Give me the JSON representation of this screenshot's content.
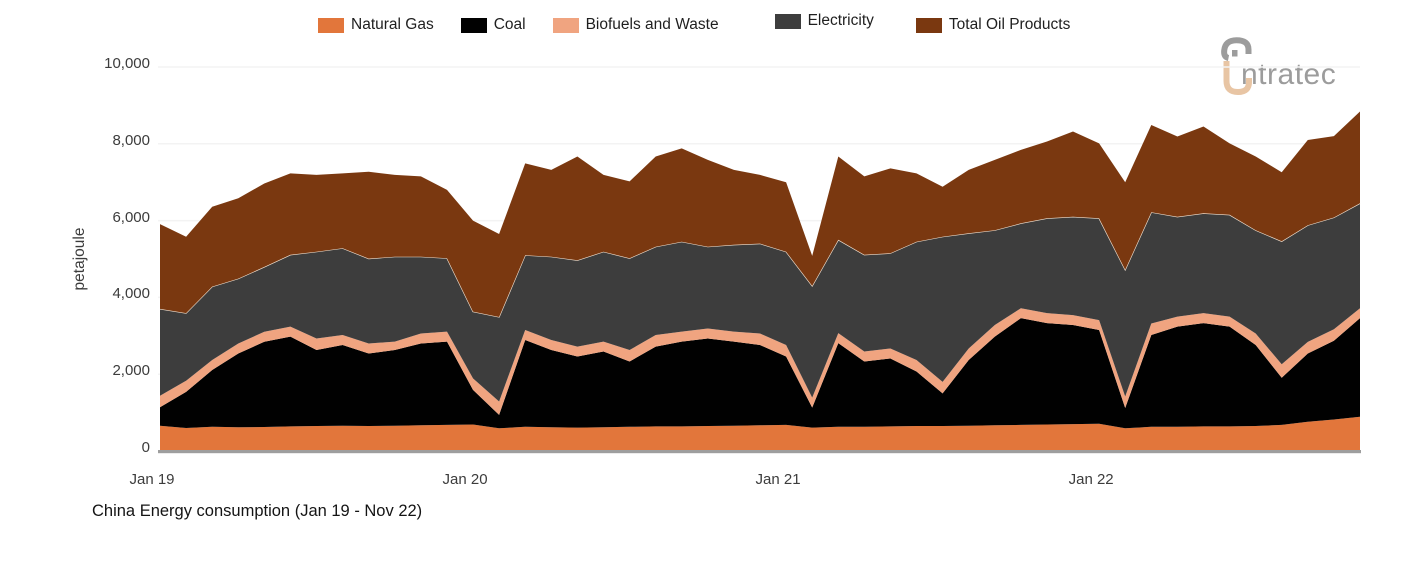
{
  "caption": "China Energy consumption (Jan 19 - Nov 22)",
  "logo": {
    "text": "ntratec",
    "mark_gray": "#9c9c9c",
    "mark_peach": "#e8c5a4"
  },
  "chart_data": {
    "type": "area",
    "subtype": "stacked",
    "unit": "petajoule",
    "title": "China Energy consumption (Jan 19 - Nov 22)",
    "ylabel": "petajoule",
    "ylim": [
      0,
      10000
    ],
    "grid": "horizontal-faint",
    "legend_position": "top-center",
    "x": [
      "Jan 19",
      "Feb 19",
      "Mar 19",
      "Apr 19",
      "May 19",
      "Jun 19",
      "Jul 19",
      "Aug 19",
      "Sep 19",
      "Oct 19",
      "Nov 19",
      "Dec 19",
      "Jan 20",
      "Feb 20",
      "Mar 20",
      "Apr 20",
      "May 20",
      "Jun 20",
      "Jul 20",
      "Aug 20",
      "Sep 20",
      "Oct 20",
      "Nov 20",
      "Dec 20",
      "Jan 21",
      "Feb 21",
      "Mar 21",
      "Apr 21",
      "May 21",
      "Jun 21",
      "Jul 21",
      "Aug 21",
      "Sep 21",
      "Oct 21",
      "Nov 21",
      "Dec 21",
      "Jan 22",
      "Feb 22",
      "Mar 22",
      "Apr 22",
      "May 22",
      "Jun 22",
      "Jul 22",
      "Aug 22",
      "Sep 22",
      "Oct 22",
      "Nov 22"
    ],
    "x_ticks": [
      {
        "label": "Jan 19",
        "month_index": 0
      },
      {
        "label": "Jan 20",
        "month_index": 12
      },
      {
        "label": "Jan 21",
        "month_index": 24
      },
      {
        "label": "Jan 22",
        "month_index": 36
      }
    ],
    "y_ticks": [
      {
        "value": 0,
        "label": "0"
      },
      {
        "value": 2000,
        "label": "2,000"
      },
      {
        "value": 4000,
        "label": "4,000"
      },
      {
        "value": 6000,
        "label": "6,000"
      },
      {
        "value": 8000,
        "label": "8,000"
      },
      {
        "value": 10000,
        "label": "10,000"
      }
    ],
    "series": [
      {
        "name": "Natural Gas",
        "color": "#e2763b",
        "values": [
          660,
          600,
          630,
          620,
          625,
          640,
          650,
          660,
          650,
          660,
          670,
          680,
          690,
          590,
          630,
          620,
          610,
          620,
          630,
          640,
          640,
          650,
          660,
          670,
          680,
          610,
          630,
          630,
          640,
          650,
          650,
          660,
          670,
          680,
          690,
          700,
          710,
          590,
          630,
          630,
          640,
          640,
          650,
          680,
          760,
          820,
          890
        ]
      },
      {
        "name": "Coal",
        "color": "#010101",
        "values": [
          480,
          940,
          1480,
          1920,
          2220,
          2340,
          1980,
          2100,
          1890,
          1970,
          2130,
          2170,
          900,
          350,
          2260,
          2010,
          1850,
          1970,
          1700,
          2080,
          2210,
          2280,
          2190,
          2090,
          1780,
          520,
          2180,
          1700,
          1770,
          1420,
          850,
          1710,
          2310,
          2780,
          2640,
          2580,
          2440,
          530,
          2390,
          2610,
          2690,
          2600,
          2110,
          1230,
          1780,
          2050,
          2570
        ]
      },
      {
        "name": "Biofuels and Waste",
        "color": "#f0a480",
        "values": [
          300,
          290,
          260,
          260,
          260,
          260,
          300,
          260,
          260,
          220,
          260,
          260,
          300,
          350,
          260,
          260,
          260,
          260,
          300,
          300,
          260,
          260,
          260,
          300,
          300,
          260,
          260,
          260,
          260,
          300,
          300,
          300,
          300,
          260,
          260,
          260,
          260,
          300,
          300,
          260,
          260,
          260,
          300,
          350,
          300,
          300,
          260
        ]
      },
      {
        "name": "Electricity",
        "color": "#3d3d3d",
        "values": [
          2260,
          1760,
          1910,
          1690,
          1690,
          1870,
          2260,
          2260,
          2210,
          2210,
          2000,
          1910,
          1740,
          2200,
          1950,
          2170,
          2250,
          2340,
          2390,
          2300,
          2340,
          2130,
          2260,
          2340,
          2430,
          2910,
          2430,
          2520,
          2480,
          3080,
          3780,
          3000,
          2470,
          2210,
          2470,
          2560,
          2650,
          3300,
          2900,
          2600,
          2600,
          2650,
          2690,
          3200,
          3040,
          2910,
          2730
        ]
      },
      {
        "name": "Total Oil Products",
        "color": "#7a3810",
        "values": [
          2210,
          1990,
          2080,
          2090,
          2170,
          2120,
          2000,
          1950,
          2260,
          2130,
          2090,
          1780,
          2370,
          2160,
          2390,
          2260,
          2700,
          2000,
          2000,
          2350,
          2430,
          2260,
          1950,
          1790,
          1810,
          780,
          2170,
          2040,
          2210,
          1780,
          1300,
          1650,
          1830,
          1910,
          2000,
          2220,
          1950,
          2280,
          2270,
          2090,
          2260,
          1860,
          1920,
          1800,
          2220,
          2120,
          2390
        ]
      }
    ],
    "style": {
      "gridline_color": "#f3f3f3",
      "axis_line_color": "#9e9e9e",
      "boundary_hairline_color": "#f5e6d6"
    }
  }
}
